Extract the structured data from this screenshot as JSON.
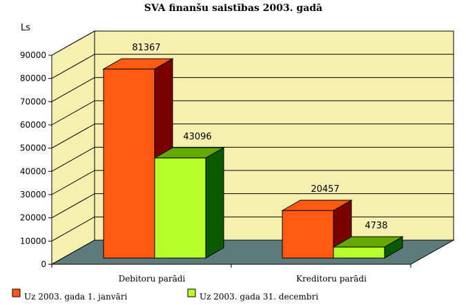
{
  "chart_data": {
    "type": "bar",
    "title": "SVA finanšu saistības 2003. gadā",
    "ylabel": "Ls",
    "xlabel": "",
    "ylim": [
      0,
      90000
    ],
    "yticks": [
      0,
      10000,
      20000,
      30000,
      40000,
      50000,
      60000,
      70000,
      80000,
      90000
    ],
    "grid": true,
    "categories": [
      "Debitoru parādi",
      "Kreditoru parādi"
    ],
    "series": [
      {
        "name": "Uz 2003. gada 1. janvāri",
        "values": [
          81367,
          20457
        ]
      },
      {
        "name": "Uz 2003. gada 31. decembri",
        "values": [
          43096,
          4738
        ]
      }
    ],
    "legend_position": "bottom"
  },
  "colors": {
    "wall": "#f5f0b0",
    "floor": "#5d7b7b",
    "series1_front": "#ff5a14",
    "series1_top": "#ff5a14",
    "series1_side": "#7a0000",
    "series2_front": "#b8ff2e",
    "series2_top": "#64a800",
    "series2_side": "#0c5a00"
  }
}
